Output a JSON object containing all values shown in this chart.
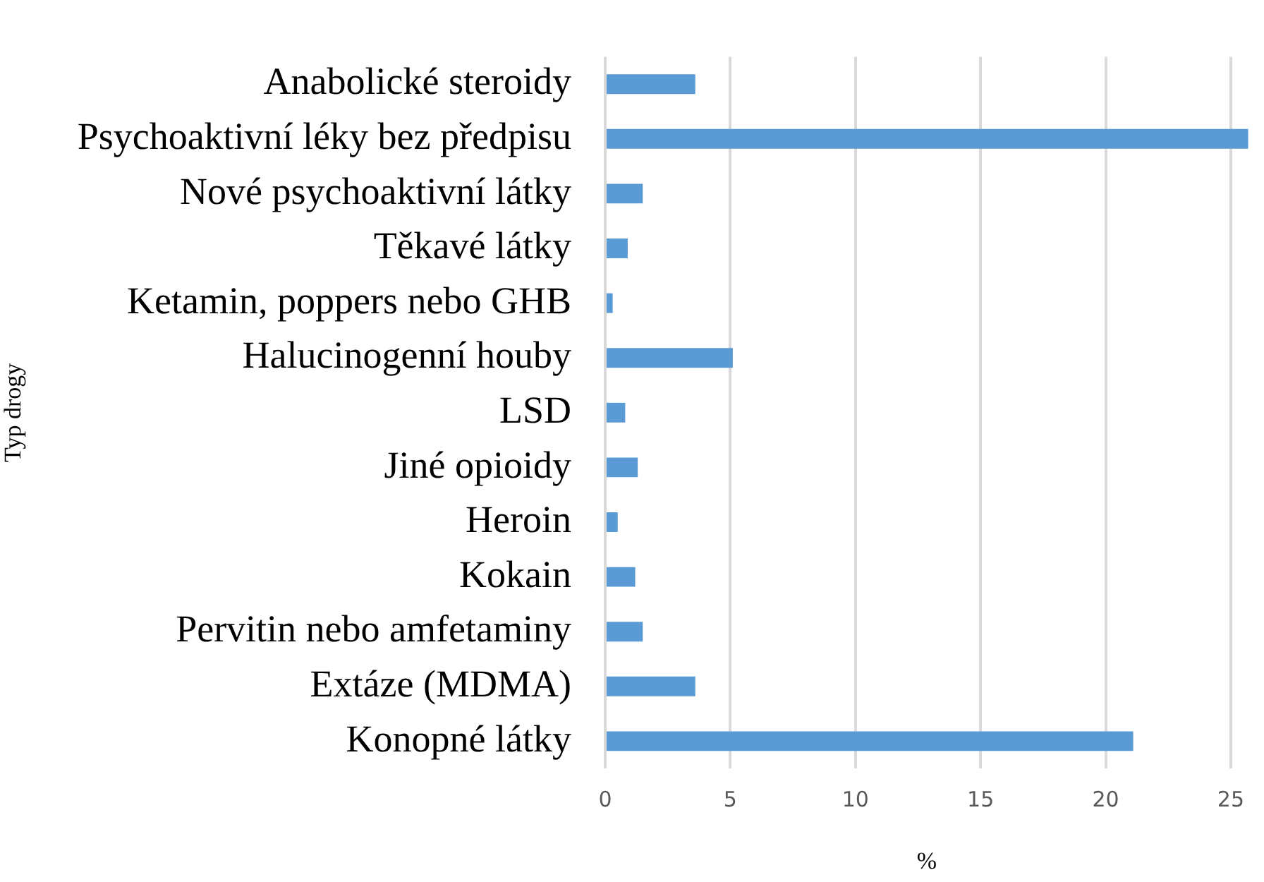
{
  "chart_data": {
    "type": "bar",
    "orientation": "horizontal",
    "xlabel": "%",
    "ylabel": "Typ drogy",
    "categories": [
      "Anabolické steroidy",
      "Psychoaktivní léky bez předpisu",
      "Nové psychoaktivní látky",
      "Těkavé látky",
      "Ketamin, poppers nebo GHB",
      "Halucinogenní houby",
      "LSD",
      "Jiné opioidy",
      "Heroin",
      "Kokain",
      "Pervitin nebo amfetaminy",
      "Extáze (MDMA)",
      "Konopné látky"
    ],
    "values": [
      3.6,
      25.7,
      1.5,
      0.9,
      0.3,
      5.1,
      0.8,
      1.3,
      0.5,
      1.2,
      1.5,
      3.6,
      21.1
    ],
    "color": "#5b9bd5",
    "xlim": [
      0,
      25.7
    ],
    "xticks": [
      0,
      5,
      10,
      15,
      20,
      25
    ],
    "grid": "x",
    "legend": false
  }
}
